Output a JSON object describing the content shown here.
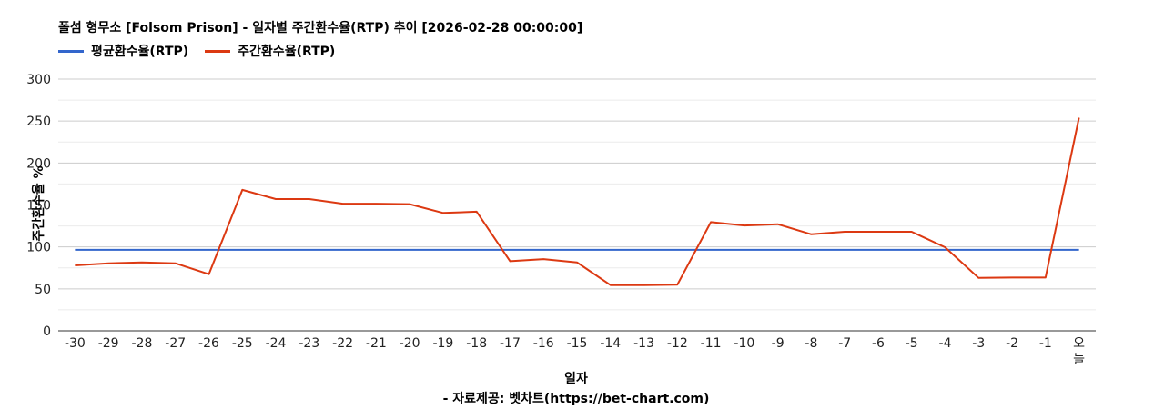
{
  "chart_data": {
    "type": "line",
    "title": "폴섬 형무소 [Folsom Prison] - 일자별 주간환수율(RTP) 추이 [2026-02-28 00:00:00]",
    "xlabel": "일자",
    "ylabel": "주간환수율 %",
    "source": "- 자료제공: 벳차트(https://bet-chart.com)",
    "ylim": [
      0,
      300
    ],
    "yticks": [
      0,
      50,
      100,
      150,
      200,
      250,
      300
    ],
    "grid": true,
    "legend_position": "top-left",
    "categories": [
      "-30",
      "-29",
      "-28",
      "-27",
      "-26",
      "-25",
      "-24",
      "-23",
      "-22",
      "-21",
      "-20",
      "-19",
      "-18",
      "-17",
      "-16",
      "-15",
      "-14",
      "-13",
      "-12",
      "-11",
      "-10",
      "-9",
      "-8",
      "-7",
      "-6",
      "-5",
      "-4",
      "-3",
      "-2",
      "-1",
      "오늘"
    ],
    "series": [
      {
        "name": "평균환수율(RTP)",
        "color": "#3366cc",
        "values": [
          96.5,
          96.5,
          96.5,
          96.5,
          96.5,
          96.5,
          96.5,
          96.5,
          96.5,
          96.5,
          96.5,
          96.5,
          96.5,
          96.5,
          96.5,
          96.5,
          96.5,
          96.5,
          96.5,
          96.5,
          96.5,
          96.5,
          96.5,
          96.5,
          96.5,
          96.5,
          96.5,
          96.5,
          96.5,
          96.5,
          96.5
        ]
      },
      {
        "name": "주간환수율(RTP)",
        "color": "#dc3912",
        "values": [
          78,
          80.5,
          81.5,
          80.5,
          67.5,
          168,
          157,
          157,
          151.5,
          151.5,
          151,
          140.5,
          142,
          83,
          85.5,
          81.5,
          54.5,
          54.5,
          55,
          129.5,
          125.5,
          127,
          115,
          118,
          118,
          118,
          99.5,
          63,
          63.5,
          63.5,
          254
        ]
      }
    ]
  }
}
